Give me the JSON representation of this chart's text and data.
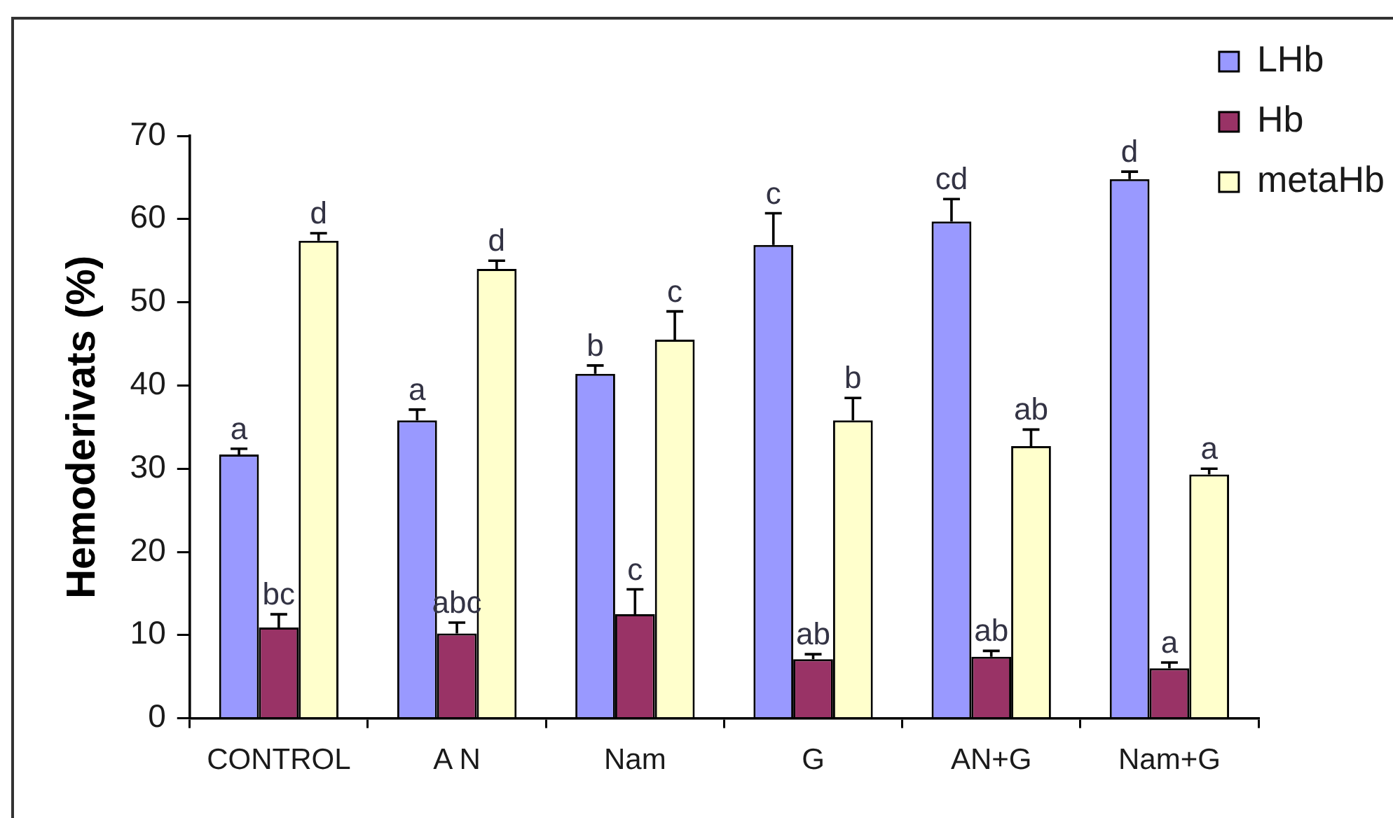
{
  "chart_data": {
    "type": "bar",
    "ylabel": "Hemoderivats (%)",
    "categories": [
      "CONTROL",
      "A N",
      "Nam",
      "G",
      "AN+G",
      "Nam+G"
    ],
    "series": [
      {
        "name": "LHb",
        "color": "#9999ff",
        "values": [
          31.7,
          35.8,
          41.4,
          56.9,
          59.7,
          64.8
        ],
        "errors": [
          [
            31.7,
            32.4
          ],
          [
            35.8,
            37.1
          ],
          [
            41.4,
            42.4
          ],
          [
            56.9,
            60.7
          ],
          [
            59.7,
            62.4
          ],
          [
            64.8,
            65.7
          ]
        ],
        "value_labels": [
          "a",
          "a",
          "b",
          "c",
          "cd",
          "d"
        ]
      },
      {
        "name": "Hb",
        "color": "#993366",
        "values": [
          10.9,
          10.2,
          12.5,
          7.1,
          7.4,
          6.0
        ],
        "errors": [
          [
            10.9,
            12.5
          ],
          [
            10.2,
            11.5
          ],
          [
            12.5,
            15.5
          ],
          [
            7.1,
            7.7
          ],
          [
            7.4,
            8.1
          ],
          [
            6.0,
            6.7
          ]
        ],
        "value_labels": [
          "bc",
          "abc",
          "c",
          "ab",
          "ab",
          "a"
        ]
      },
      {
        "name": "metaHb",
        "color": "#ffffcc",
        "values": [
          57.4,
          54.0,
          45.5,
          35.8,
          32.7,
          29.3
        ],
        "errors": [
          [
            57.4,
            58.3
          ],
          [
            54.0,
            55.0
          ],
          [
            45.5,
            48.9
          ],
          [
            35.8,
            38.5
          ],
          [
            32.7,
            34.7
          ],
          [
            29.3,
            30.0
          ]
        ],
        "value_labels": [
          "d",
          "d",
          "c",
          "b",
          "ab",
          "a"
        ]
      }
    ],
    "ylim": [
      0,
      70
    ],
    "yticks": [
      0,
      10,
      20,
      30,
      40,
      50,
      60,
      70
    ],
    "grid": false,
    "legend": "top right"
  }
}
